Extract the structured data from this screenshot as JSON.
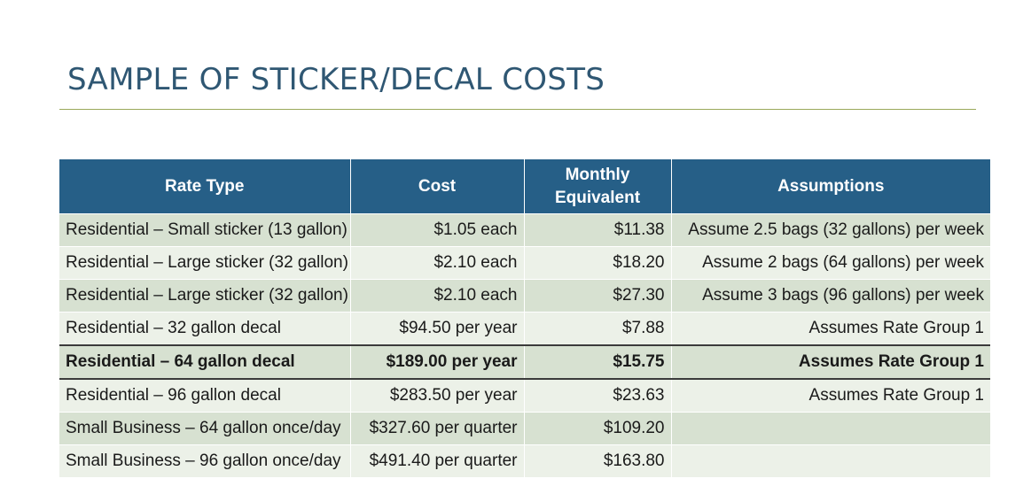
{
  "title": "SAMPLE OF STICKER/DECAL COSTS",
  "table": {
    "headers": [
      "Rate Type",
      "Cost",
      "Monthly Equivalent",
      "Assumptions"
    ],
    "rows": [
      {
        "rate_type": "Residential – Small sticker (13 gallon)",
        "cost": "$1.05 each",
        "monthly": "$11.38",
        "assumptions": "Assume 2.5 bags (32 gallons) per week",
        "bold": false
      },
      {
        "rate_type": "Residential – Large sticker (32 gallon)",
        "cost": "$2.10 each",
        "monthly": "$18.20",
        "assumptions": "Assume 2 bags (64 gallons) per week",
        "bold": false
      },
      {
        "rate_type": "Residential – Large sticker (32 gallon)",
        "cost": "$2.10 each",
        "monthly": "$27.30",
        "assumptions": "Assume 3 bags (96 gallons) per week",
        "bold": false
      },
      {
        "rate_type": "Residential – 32 gallon decal",
        "cost": "$94.50 per year",
        "monthly": "$7.88",
        "assumptions": "Assumes Rate Group 1",
        "bold": false
      },
      {
        "rate_type": "Residential – 64 gallon decal",
        "cost": "$189.00 per year",
        "monthly": "$15.75",
        "assumptions": "Assumes Rate Group 1",
        "bold": true
      },
      {
        "rate_type": "Residential – 96 gallon decal",
        "cost": "$283.50 per year",
        "monthly": "$23.63",
        "assumptions": "Assumes Rate Group 1",
        "bold": false
      },
      {
        "rate_type": "Small Business – 64 gallon once/day",
        "cost": "$327.60 per quarter",
        "monthly": "$109.20",
        "assumptions": "",
        "bold": false
      },
      {
        "rate_type": "Small Business – 96 gallon once/day",
        "cost": "$491.40 per quarter",
        "monthly": "$163.80",
        "assumptions": "",
        "bold": false
      }
    ]
  },
  "colors": {
    "title": "#2f5773",
    "header_bg": "#265f87",
    "row_dark": "#d7e1d1",
    "row_light": "#ecf1e8",
    "rule": "#9aa85a"
  }
}
